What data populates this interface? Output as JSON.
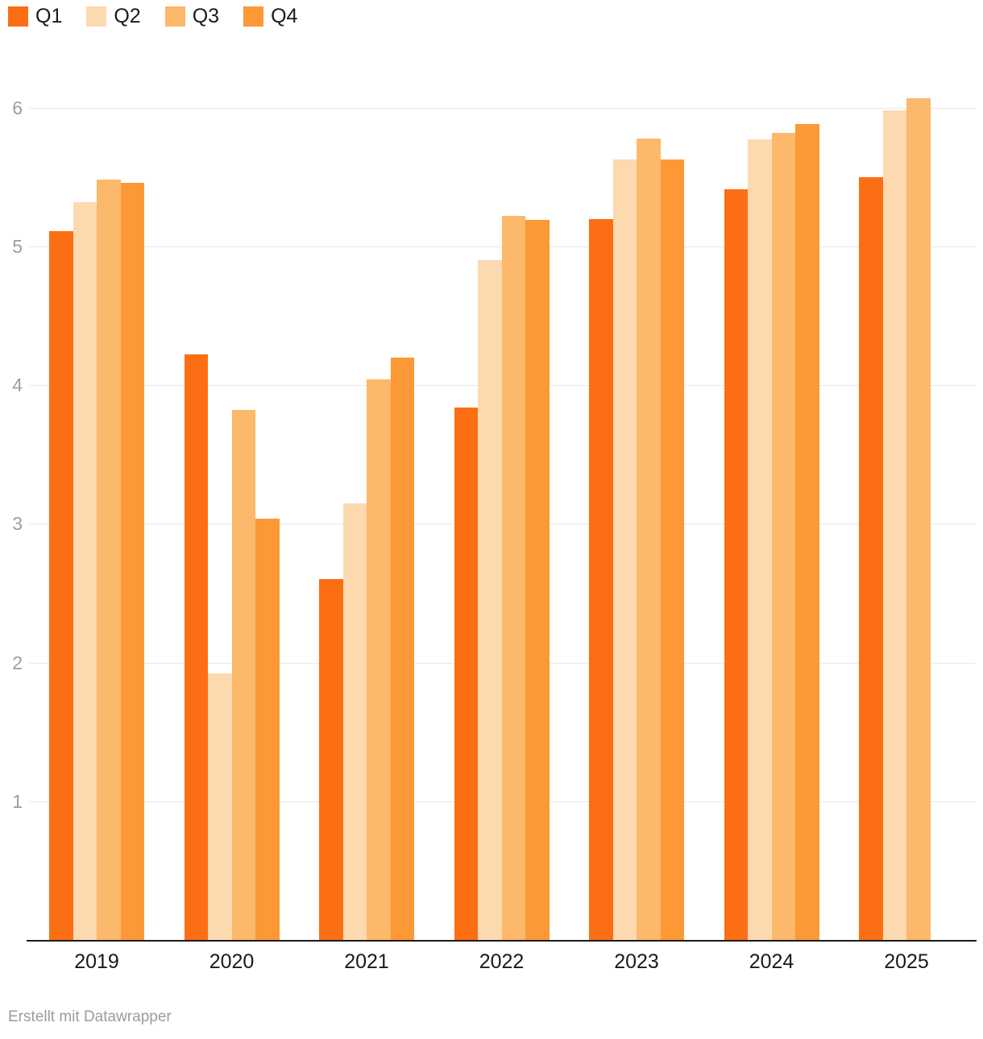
{
  "footer": {
    "text": "Erstellt mit Datawrapper"
  },
  "chart_data": {
    "type": "bar",
    "title": "",
    "xlabel": "",
    "ylabel": "",
    "categories": [
      "2019",
      "2020",
      "2021",
      "2022",
      "2023",
      "2024",
      "2025"
    ],
    "series": [
      {
        "name": "Q1",
        "color": "#fc6e14",
        "values": [
          5.11,
          4.22,
          2.6,
          3.84,
          5.2,
          5.41,
          5.5
        ]
      },
      {
        "name": "Q2",
        "color": "#fdd9b0",
        "values": [
          5.32,
          1.92,
          3.15,
          4.9,
          5.63,
          5.77,
          5.98
        ]
      },
      {
        "name": "Q3",
        "color": "#fcb86b",
        "values": [
          5.48,
          3.82,
          4.04,
          5.22,
          5.78,
          5.82,
          6.07
        ]
      },
      {
        "name": "Q4",
        "color": "#fc9936",
        "values": [
          5.46,
          3.04,
          4.2,
          5.19,
          5.63,
          5.88,
          null
        ]
      }
    ],
    "yticks": [
      1,
      2,
      3,
      4,
      5,
      6
    ],
    "ylim": [
      0,
      6.25
    ],
    "grid": "horizontal",
    "gridline_color": "#e8e8e8",
    "axis_line_color": "#1a1a1a",
    "tick_label_color": "#9e9e9e",
    "legend_position": "top-left"
  }
}
